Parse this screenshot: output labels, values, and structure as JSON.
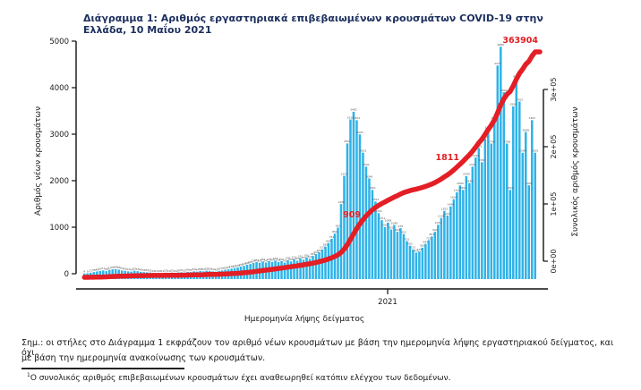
{
  "title": "Διάγραμμα 1: Αριθμός εργαστηριακά επιβεβαιωμένων κρουσμάτων COVID-19 στην Ελλάδα, 10 Μαΐου 2021",
  "chart_data": {
    "type": "bar",
    "title": "Διάγραμμα 1: Αριθμός εργαστηριακά επιβεβαιωμένων κρουσμάτων COVID-19 στην Ελλάδα, 10 Μαΐου 2021",
    "x_axis": {
      "label": "Ημερομηνία λήψης δείγματος",
      "tick_labels": [
        "2021"
      ]
    },
    "y_axis_left": {
      "label": "Αριθμός νέων κρουσμάτων",
      "ticks": [
        0,
        1000,
        2000,
        3000,
        4000,
        5000
      ],
      "ylim": [
        0,
        5000
      ]
    },
    "y_axis_right": {
      "label": "Συνολικός αριθμός κρουσμάτων",
      "tick_labels": [
        "0e+00",
        "1e+05",
        "2e+05",
        "3e+05"
      ],
      "ylim": [
        0,
        300000
      ]
    },
    "bar_color": "#2fb3e8",
    "line_color": "#e41e25",
    "grid": false,
    "legend": "none",
    "series": [
      {
        "name": "new_cases_bars",
        "type": "bar",
        "values": [
          4,
          9,
          21,
          35,
          48,
          60,
          71,
          56,
          82,
          95,
          99,
          88,
          70,
          61,
          52,
          45,
          65,
          55,
          40,
          34,
          30,
          25,
          19,
          15,
          18,
          12,
          22,
          16,
          25,
          20,
          28,
          31,
          25,
          40,
          35,
          50,
          44,
          58,
          52,
          65,
          60,
          50,
          45,
          62,
          70,
          85,
          95,
          110,
          121,
          135,
          152,
          170,
          192,
          210,
          232,
          251,
          235,
          262,
          241,
          270,
          254,
          281,
          252,
          270,
          241,
          290,
          265,
          312,
          280,
          331,
          301,
          350,
          322,
          381,
          422,
          462,
          521,
          582,
          660,
          751,
          862,
          991,
          1498,
          2102,
          2801,
          3316,
          3482,
          3301,
          2995,
          2602,
          2301,
          2049,
          1801,
          1552,
          1302,
          1151,
          1002,
          1098,
          951,
          1048,
          902,
          978,
          852,
          701,
          602,
          521,
          452,
          478,
          561,
          642,
          721,
          801,
          902,
          1051,
          1198,
          1352,
          1251,
          1448,
          1602,
          1751,
          1899,
          1802,
          2099,
          1948,
          2302,
          2499,
          2701,
          2398,
          2902,
          3101,
          2798,
          3302,
          4475,
          4880,
          3902,
          2798,
          1802,
          3598,
          4201,
          3702,
          2599,
          3048,
          1902,
          3302,
          2601
        ]
      },
      {
        "name": "cumulative_line",
        "type": "line",
        "end_value": 363904
      }
    ],
    "annotations": [
      {
        "text": "909",
        "x": 403,
        "y": 243
      },
      {
        "text": "1811",
        "x": 513,
        "y": 179
      },
      {
        "text": "363904",
        "x": 601,
        "y": 48
      }
    ]
  },
  "footnote": {
    "line1": "Σημ.: οι στήλες στο Διάγραμμα 1 εκφράζουν τον αριθμό νέων κρουσμάτων με βάση την ημερομηνία λήψης εργαστηριακού δείγματος, και όχι",
    "line2": "με βάση την ημερομηνία ανακοίνωσης των κρουσμάτων.",
    "note_sup": "1",
    "note": "Ο συνολικός αριθμός επιβεβαιωμένων κρουσμάτων έχει αναθεωρηθεί κατόπιν ελέγχου των δεδομένων."
  }
}
